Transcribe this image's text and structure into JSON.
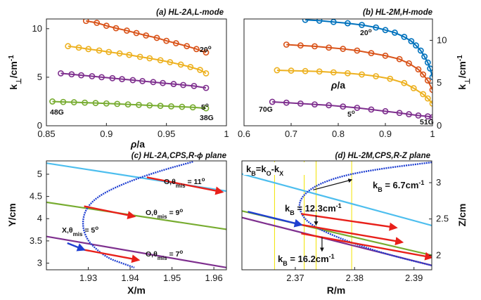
{
  "chart_data": [
    {
      "type": "line",
      "title": "(a) HL-2A,L-mode",
      "xlabel": "ρ/a",
      "ylabel": "k⊥/cm⁻¹",
      "xlim": [
        0.85,
        1.0
      ],
      "ylim": [
        0,
        11
      ],
      "xticks": [
        "0.85",
        "0.9",
        "0.95",
        "1"
      ],
      "yticks": [
        "0",
        "5",
        "10"
      ],
      "series": [
        {
          "color": "#d95319",
          "x": [
            0.883,
            0.892,
            0.9,
            0.908,
            0.917,
            0.925,
            0.933,
            0.942,
            0.95,
            0.958,
            0.967,
            0.975,
            0.983
          ],
          "y": [
            10.8,
            10.6,
            10.3,
            10.05,
            9.8,
            9.55,
            9.3,
            9.05,
            8.75,
            8.5,
            8.2,
            7.9,
            7.55
          ]
        },
        {
          "color": "#edb120",
          "x": [
            0.868,
            0.877,
            0.885,
            0.894,
            0.902,
            0.911,
            0.919,
            0.928,
            0.936,
            0.945,
            0.953,
            0.962,
            0.97,
            0.978,
            0.983
          ],
          "y": [
            8.2,
            8.05,
            7.9,
            7.75,
            7.6,
            7.45,
            7.3,
            7.1,
            6.95,
            6.75,
            6.55,
            6.3,
            6.05,
            5.75,
            5.4
          ]
        },
        {
          "color": "#7e2f8e",
          "x": [
            0.862,
            0.871,
            0.879,
            0.888,
            0.896,
            0.905,
            0.913,
            0.922,
            0.93,
            0.939,
            0.947,
            0.956,
            0.964,
            0.973,
            0.983
          ],
          "y": [
            5.4,
            5.3,
            5.2,
            5.1,
            5.0,
            4.9,
            4.8,
            4.7,
            4.6,
            4.5,
            4.4,
            4.3,
            4.2,
            4.1,
            3.9
          ]
        },
        {
          "color": "#77ac30",
          "x": [
            0.855,
            0.864,
            0.873,
            0.882,
            0.891,
            0.9,
            0.909,
            0.918,
            0.927,
            0.936,
            0.945,
            0.954,
            0.963,
            0.972,
            0.983
          ],
          "y": [
            2.5,
            2.45,
            2.42,
            2.38,
            2.34,
            2.3,
            2.25,
            2.2,
            2.15,
            2.1,
            2.05,
            2.0,
            1.95,
            1.9,
            1.8
          ]
        }
      ],
      "annotations": [
        "20o",
        "5o",
        "48G",
        "38G"
      ]
    },
    {
      "type": "line",
      "title": "(b) HL-2M,H-mode",
      "xlabel": "ρ/a",
      "ylabel": "k⊥/cm⁻¹",
      "xlim": [
        0.6,
        1.0
      ],
      "ylim": [
        0,
        12.5
      ],
      "xticks": [
        "0.6",
        "0.7",
        "0.8",
        "0.9",
        "1"
      ],
      "yticks": [
        "0",
        "5",
        "10"
      ],
      "series": [
        {
          "color": "#0072bd",
          "x": [
            0.73,
            0.76,
            0.79,
            0.82,
            0.85,
            0.88,
            0.9,
            0.92,
            0.94,
            0.955,
            0.965,
            0.975,
            0.983,
            0.99,
            0.995,
            1.0
          ],
          "y": [
            12.4,
            12.3,
            12.15,
            12.0,
            11.8,
            11.5,
            11.2,
            10.9,
            10.4,
            9.9,
            9.4,
            8.8,
            8.1,
            7.4,
            6.7,
            5.7
          ]
        },
        {
          "color": "#d95319",
          "x": [
            0.69,
            0.72,
            0.75,
            0.78,
            0.81,
            0.84,
            0.87,
            0.9,
            0.93,
            0.95,
            0.97,
            0.98,
            0.99,
            1.0
          ],
          "y": [
            9.5,
            9.4,
            9.3,
            9.15,
            9.0,
            8.8,
            8.5,
            8.2,
            7.8,
            7.3,
            6.6,
            6.0,
            5.3,
            4.2
          ]
        },
        {
          "color": "#edb120",
          "x": [
            0.67,
            0.7,
            0.73,
            0.76,
            0.79,
            0.82,
            0.85,
            0.88,
            0.91,
            0.94,
            0.96,
            0.98,
            0.99,
            1.0
          ],
          "y": [
            6.5,
            6.45,
            6.4,
            6.35,
            6.25,
            6.15,
            6.0,
            5.8,
            5.5,
            5.0,
            4.4,
            3.7,
            3.2,
            2.6
          ]
        },
        {
          "color": "#7e2f8e",
          "x": [
            0.66,
            0.69,
            0.72,
            0.75,
            0.78,
            0.81,
            0.84,
            0.87,
            0.9,
            0.93,
            0.95,
            0.97,
            0.99,
            1.0
          ],
          "y": [
            2.8,
            2.7,
            2.6,
            2.5,
            2.4,
            2.25,
            2.1,
            1.9,
            1.7,
            1.5,
            1.35,
            1.2,
            1.1,
            1.0
          ]
        }
      ],
      "annotations": [
        "20o",
        "5o",
        "70G",
        "51G"
      ]
    },
    {
      "type": "line",
      "title": "(c) HL-2A,CPS,R-ϕ plane",
      "xlabel": "X/m",
      "ylabel": "Y/cm",
      "xlim": [
        1.92,
        1.963
      ],
      "ylim": [
        2.85,
        5.3
      ],
      "xticks": [
        "1.93",
        "1.94",
        "1.95",
        "1.96"
      ],
      "yticks": [
        "3",
        "3.5",
        "4",
        "4.5",
        "5"
      ],
      "lines": [
        {
          "color": "#4dbeee",
          "x": [
            1.92,
            1.963
          ],
          "y": [
            5.25,
            4.62
          ]
        },
        {
          "color": "#77ac30",
          "x": [
            1.92,
            1.963
          ],
          "y": [
            4.37,
            3.76
          ]
        },
        {
          "color": "#7e2f8e",
          "x": [
            1.92,
            1.963
          ],
          "y": [
            3.6,
            2.9
          ]
        }
      ],
      "cutoff_curve": {
        "color": "#1f3fd1",
        "x": [
          1.955,
          1.948,
          1.94,
          1.933,
          1.9295,
          1.9285,
          1.9295,
          1.932,
          1.935,
          1.938,
          1.941
        ],
        "y": [
          5.28,
          5.1,
          4.85,
          4.55,
          4.25,
          3.9,
          3.55,
          3.3,
          3.1,
          3.0,
          2.9
        ]
      },
      "arrows": [
        {
          "color": "#e8201a",
          "from": [
            1.944,
            4.93
          ],
          "to": [
            1.962,
            4.6
          ]
        },
        {
          "color": "#e8201a",
          "from": [
            1.929,
            4.28
          ],
          "to": [
            1.941,
            4.05
          ]
        },
        {
          "color": "#e8201a",
          "from": [
            1.929,
            3.3
          ],
          "to": [
            1.942,
            3.07
          ]
        },
        {
          "color": "#1f3fd1",
          "from": [
            1.925,
            3.45
          ],
          "to": [
            1.929,
            3.3
          ]
        }
      ],
      "annotations": [
        "O,θmis = 11o",
        "O,θmis = 9o",
        "X,θmis = 5o",
        "O,θmis = 7o"
      ]
    },
    {
      "type": "line",
      "title": "(d) HL-2M,CPS,R-Z plane",
      "xlabel": "R/m",
      "ylabel": "Z/cm",
      "xlim": [
        2.361,
        2.393
      ],
      "ylim": [
        1.8,
        3.3
      ],
      "xticks": [
        "2.37",
        "2.38",
        "2.39"
      ],
      "yticks": [
        "2",
        "2.5",
        "3"
      ],
      "lines": [
        {
          "color": "#4dbeee",
          "x": [
            2.361,
            2.393
          ],
          "y": [
            3.12,
            2.41
          ]
        },
        {
          "color": "#77ac30",
          "x": [
            2.361,
            2.393
          ],
          "y": [
            2.61,
            2.0
          ]
        },
        {
          "color": "#7e2f8e",
          "x": [
            2.361,
            2.393
          ],
          "y": [
            2.52,
            1.86
          ]
        }
      ],
      "vlines": [
        2.3665,
        2.3715,
        2.3735,
        2.3795
      ],
      "cutoff_curve": {
        "color": "#1f3fd1",
        "x": [
          2.393,
          2.385,
          2.378,
          2.373,
          2.3705,
          2.371,
          2.373,
          2.377,
          2.382,
          2.387,
          2.393
        ],
        "y": [
          3.28,
          3.2,
          3.1,
          2.95,
          2.75,
          2.55,
          2.4,
          2.25,
          2.1,
          1.98,
          1.86
        ]
      },
      "arrows": [
        {
          "color": "#e8201a",
          "from": [
            2.371,
            2.57
          ],
          "to": [
            2.387,
            2.38
          ]
        },
        {
          "color": "#e8201a",
          "from": [
            2.371,
            2.42
          ],
          "to": [
            2.388,
            2.18
          ]
        },
        {
          "color": "#e8201a",
          "from": [
            2.371,
            2.3
          ],
          "to": [
            2.393,
            1.97
          ]
        },
        {
          "color": "#1f3fd1",
          "from": [
            2.362,
            2.6
          ],
          "to": [
            2.371,
            2.42
          ]
        },
        {
          "color": "#111111",
          "from": [
            2.373,
            2.9
          ],
          "to": [
            2.3795,
            3.04
          ]
        },
        {
          "color": "#111111",
          "from": [
            2.3735,
            2.55
          ],
          "to": [
            2.3735,
            2.42
          ]
        },
        {
          "color": "#111111",
          "from": [
            2.3745,
            2.25
          ],
          "to": [
            2.3745,
            2.06
          ]
        }
      ],
      "annotations": [
        "kB=kO-kX",
        "kB = 6.7cm-1",
        "kB = 12.3cm-1",
        "kB = 16.2cm-1"
      ]
    }
  ]
}
